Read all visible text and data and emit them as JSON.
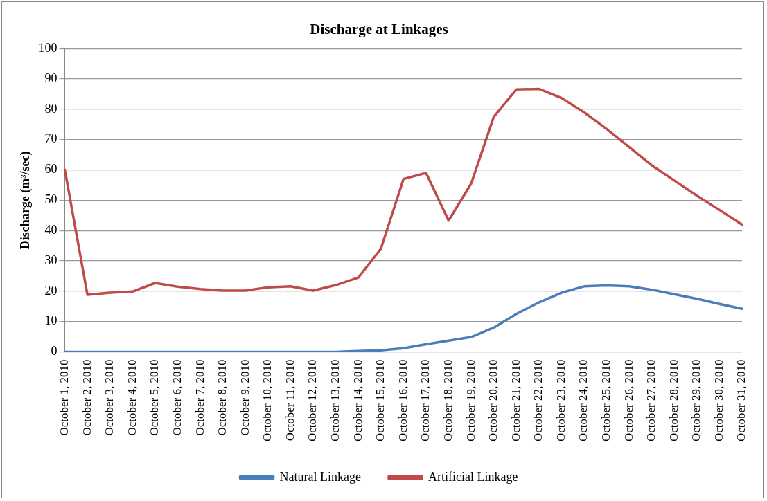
{
  "chart_data": {
    "type": "line",
    "title": "Discharge at Linkages",
    "ylabel": "Discharge (m³/sec)",
    "categories": [
      "October 1, 2010",
      "October 2, 2010",
      "October 3, 2010",
      "October 4, 2010",
      "October 5, 2010",
      "October 6, 2010",
      "October 7, 2010",
      "October 8, 2010",
      "October 9, 2010",
      "October 10, 2010",
      "October 11, 2010",
      "October 12, 2010",
      "October 13, 2010",
      "October 14, 2010",
      "October 15, 2010",
      "October 16, 2010",
      "October 17, 2010",
      "October 18, 2010",
      "October 19, 2010",
      "October 20, 2010",
      "October 21, 2010",
      "October 22, 2010",
      "October 23, 2010",
      "October 24, 2010",
      "October 25, 2010",
      "October 26, 2010",
      "October 27, 2010",
      "October 28, 2010",
      "October 29, 2010",
      "October 30, 2010",
      "October 31, 2010"
    ],
    "series": [
      {
        "name": "Natural Linkage",
        "color": "#4a7ebb",
        "values": [
          0,
          0,
          0,
          0,
          0,
          0,
          0,
          0,
          0,
          0,
          0,
          0,
          0,
          0.3,
          0.5,
          1.2,
          2.5,
          3.7,
          4.9,
          8,
          12.5,
          16.3,
          19.5,
          21.6,
          21.9,
          21.6,
          20.5,
          19,
          17.5,
          15.8,
          14.2
        ]
      },
      {
        "name": "Artificial Linkage",
        "color": "#be4b48",
        "values": [
          60,
          18.8,
          19.5,
          19.9,
          22.7,
          21.5,
          20.7,
          20.2,
          20.2,
          21.3,
          21.6,
          20.2,
          22,
          24.5,
          34,
          57,
          59,
          43.3,
          55.5,
          77.5,
          86.5,
          86.7,
          83.7,
          79,
          73.5,
          67.5,
          61.5,
          56.5,
          51.5,
          46.8,
          42
        ]
      }
    ],
    "ylim": [
      0,
      100
    ],
    "yticks": [
      0,
      10,
      20,
      30,
      40,
      50,
      60,
      70,
      80,
      90,
      100
    ],
    "grid": "y",
    "legend": "bottom",
    "marker": "none",
    "line_style": "solid"
  }
}
